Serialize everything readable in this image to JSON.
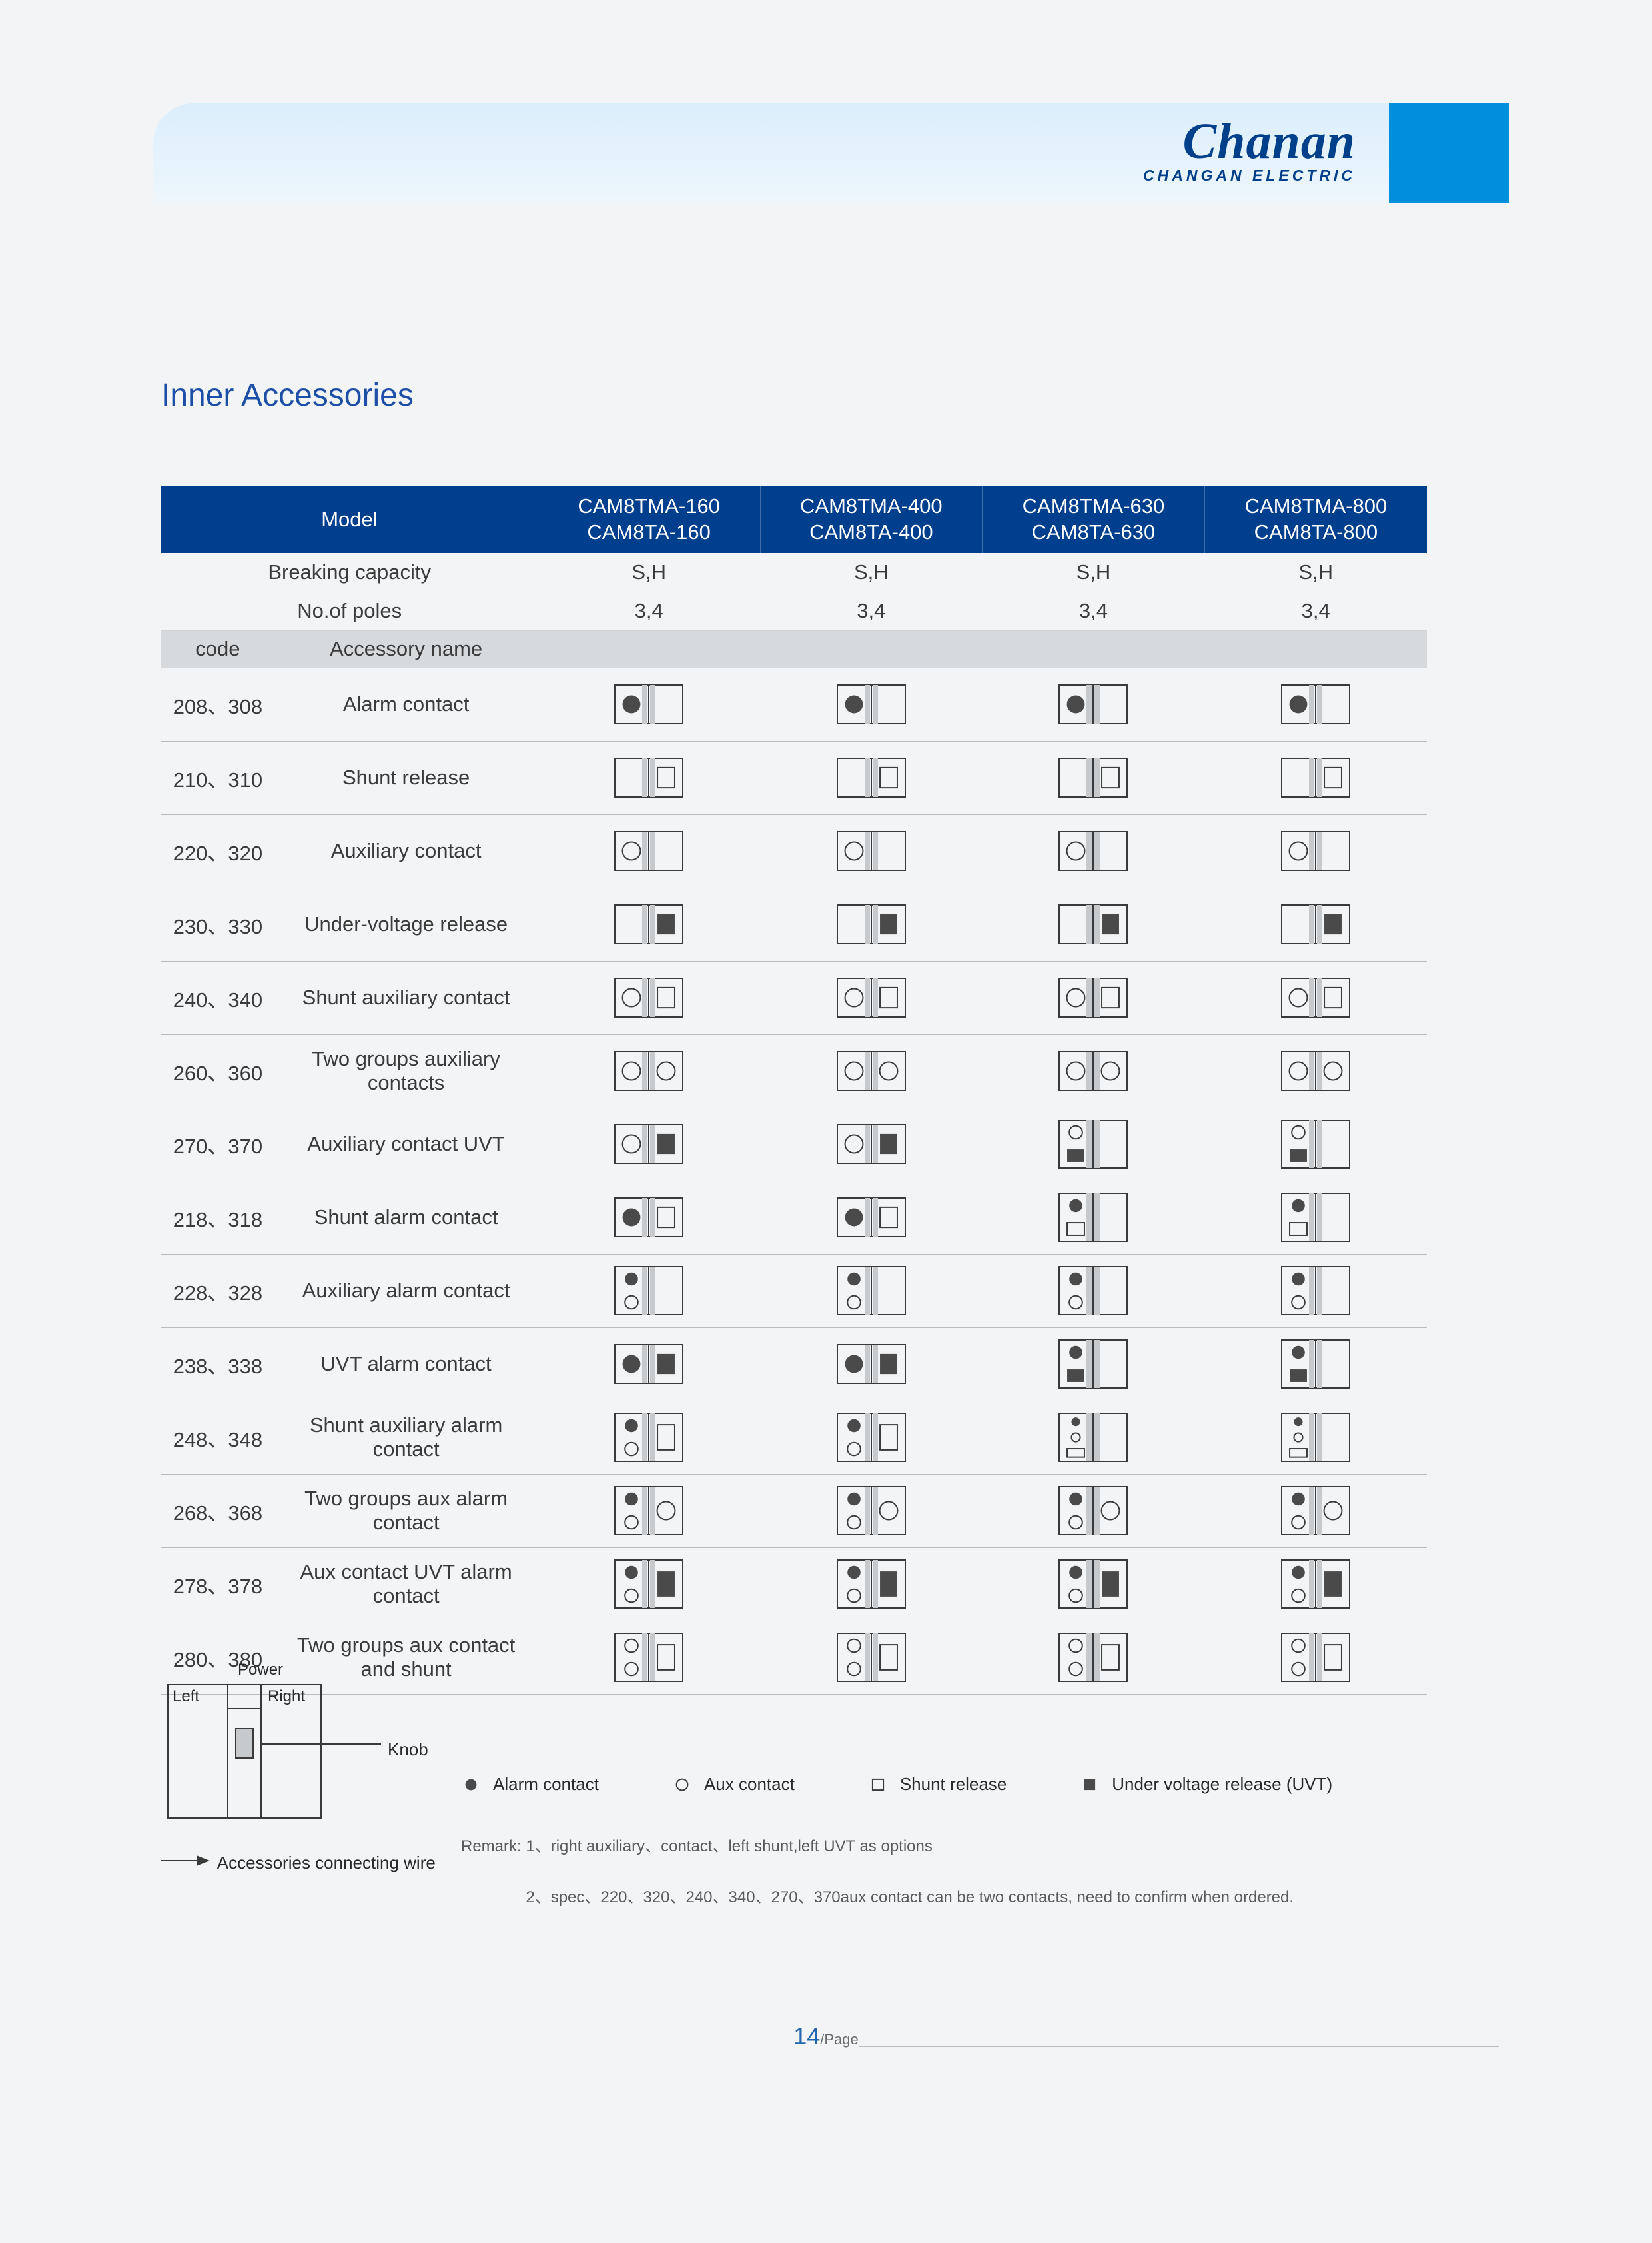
{
  "brand": {
    "main": "Chanan",
    "sub": "CHANGAN ELECTRIC"
  },
  "section_title": "Inner Accessories",
  "colors": {
    "page_bg": "#f2f4f6",
    "banner_top": "#dbeefc",
    "banner_bottom": "#eef6fc",
    "banner_accent": "#0090db",
    "brand": "#00408a",
    "title": "#1e4fa7",
    "table_header_bg": "#003f8e",
    "table_header_border": "rgba(255,255,255,0.25)",
    "grey_row_bg": "#d7dadd",
    "row_border": "#b8bcc2",
    "info_border": "#cfd3d8",
    "footer_num": "#2266b2",
    "diagram_stroke": "#3a3a3a",
    "diagram_fill_grey": "#c7cacd",
    "diagram_fill_dark": "#4a4a4a"
  },
  "header": {
    "model_label": "Model",
    "models": [
      {
        "a": "CAM8TMA-160",
        "b": "CAM8TA-160"
      },
      {
        "a": "CAM8TMA-400",
        "b": "CAM8TA-400"
      },
      {
        "a": "CAM8TMA-630",
        "b": "CAM8TA-630"
      },
      {
        "a": "CAM8TMA-800",
        "b": "CAM8TA-800"
      }
    ],
    "breaking_label": "Breaking capacity",
    "breaking_values": [
      "S,H",
      "S,H",
      "S,H",
      "S,H"
    ],
    "poles_label": "No.of poles",
    "poles_values": [
      "3,4",
      "3,4",
      "3,4",
      "3,4"
    ],
    "code_label": "code",
    "acc_name_label": "Accessory name"
  },
  "accessories": [
    {
      "code": "208、308",
      "name": "Alarm contact",
      "icons": [
        "alarm-single",
        "alarm-single",
        "alarm-single",
        "alarm-single"
      ]
    },
    {
      "code": "210、310",
      "name": "Shunt release",
      "icons": [
        "shunt-single",
        "shunt-single",
        "shunt-single",
        "shunt-single"
      ]
    },
    {
      "code": "220、320",
      "name": "Auxiliary contact",
      "icons": [
        "aux-single",
        "aux-single",
        "aux-single",
        "aux-single"
      ]
    },
    {
      "code": "230、330",
      "name": "Under-voltage release",
      "icons": [
        "uvt-single",
        "uvt-single",
        "uvt-single",
        "uvt-single"
      ]
    },
    {
      "code": "240、340",
      "name": "Shunt auxiliary contact",
      "icons": [
        "aux-shunt",
        "aux-shunt",
        "aux-shunt",
        "aux-shunt"
      ]
    },
    {
      "code": "260、360",
      "name": "Two groups auxiliary contacts",
      "icons": [
        "aux-aux",
        "aux-aux",
        "aux-aux",
        "aux-aux"
      ]
    },
    {
      "code": "270、370",
      "name": "Auxiliary contact UVT",
      "icons": [
        "aux-uvt",
        "aux-uvt",
        "aux-uvt-stack",
        "aux-uvt-stack"
      ]
    },
    {
      "code": "218、318",
      "name": "Shunt alarm contact",
      "icons": [
        "alarm-shunt",
        "alarm-shunt",
        "alarm-shunt-stack",
        "alarm-shunt-stack"
      ]
    },
    {
      "code": "228、328",
      "name": "Auxiliary alarm contact",
      "icons": [
        "alarm-aux-stack",
        "alarm-aux-stack",
        "alarm-aux-stack",
        "alarm-aux-stack"
      ]
    },
    {
      "code": "238、338",
      "name": "UVT alarm contact",
      "icons": [
        "alarm-uvt",
        "alarm-uvt",
        "alarm-uvt-stack",
        "alarm-uvt-stack"
      ]
    },
    {
      "code": "248、348",
      "name": "Shunt auxiliary alarm contact",
      "icons": [
        "alarm-aux-shunt",
        "alarm-aux-shunt",
        "alarm-aux-shunt-stack",
        "alarm-aux-shunt-stack"
      ]
    },
    {
      "code": "268、368",
      "name": "Two groups aux alarm contact",
      "icons": [
        "alarm-aux-aux",
        "alarm-aux-aux",
        "alarm-aux-aux-stack",
        "alarm-aux-aux-stack"
      ]
    },
    {
      "code": "278、378",
      "name": "Aux contact UVT alarm contact",
      "icons": [
        "alarm-aux-uvt",
        "alarm-aux-uvt",
        "alarm-aux-uvt-stack",
        "alarm-aux-uvt-stack"
      ]
    },
    {
      "code": "280、380",
      "name": "Two groups aux contact and shunt",
      "icons": [
        "aux-aux-shunt",
        "aux-aux-shunt",
        "aux-aux-shunt-stack",
        "aux-aux-shunt-stack"
      ]
    }
  ],
  "icon_defs": {
    "alarm-single": {
      "layout": "wide",
      "slots": [
        [
          "alarm"
        ],
        []
      ]
    },
    "shunt-single": {
      "layout": "wide",
      "slots": [
        [],
        [
          "shunt"
        ]
      ]
    },
    "aux-single": {
      "layout": "wide",
      "slots": [
        [
          "aux"
        ],
        []
      ]
    },
    "uvt-single": {
      "layout": "wide",
      "slots": [
        [],
        [
          "uvt"
        ]
      ]
    },
    "aux-shunt": {
      "layout": "wide",
      "slots": [
        [
          "aux"
        ],
        [
          "shunt"
        ]
      ]
    },
    "aux-aux": {
      "layout": "wide",
      "slots": [
        [
          "aux"
        ],
        [
          "aux"
        ]
      ]
    },
    "aux-uvt": {
      "layout": "wide",
      "slots": [
        [
          "aux"
        ],
        [
          "uvt"
        ]
      ]
    },
    "aux-uvt-stack": {
      "layout": "narrow",
      "slots": [
        [
          "aux",
          "uvt"
        ],
        []
      ]
    },
    "alarm-shunt": {
      "layout": "wide",
      "slots": [
        [
          "alarm"
        ],
        [
          "shunt"
        ]
      ]
    },
    "alarm-shunt-stack": {
      "layout": "narrow",
      "slots": [
        [
          "alarm",
          "shunt"
        ],
        []
      ]
    },
    "alarm-aux-stack": {
      "layout": "narrow",
      "slots": [
        [
          "alarm",
          "aux"
        ],
        []
      ]
    },
    "alarm-uvt": {
      "layout": "wide",
      "slots": [
        [
          "alarm"
        ],
        [
          "uvt"
        ]
      ]
    },
    "alarm-uvt-stack": {
      "layout": "narrow",
      "slots": [
        [
          "alarm",
          "uvt"
        ],
        []
      ]
    },
    "alarm-aux-shunt": {
      "layout": "wide-stack",
      "slots": [
        [
          "alarm",
          "aux"
        ],
        [
          "shunt"
        ]
      ]
    },
    "alarm-aux-shunt-stack": {
      "layout": "narrow-stack",
      "slots": [
        [
          "alarm",
          "aux",
          "shunt"
        ],
        []
      ]
    },
    "alarm-aux-aux": {
      "layout": "wide-stack",
      "slots": [
        [
          "alarm",
          "aux"
        ],
        [
          "aux"
        ]
      ]
    },
    "alarm-aux-aux-stack": {
      "layout": "narrow-stack",
      "slots": [
        [
          "alarm",
          "aux"
        ],
        [
          "aux"
        ]
      ]
    },
    "alarm-aux-uvt": {
      "layout": "wide-stack",
      "slots": [
        [
          "alarm",
          "aux"
        ],
        [
          "uvt"
        ]
      ]
    },
    "alarm-aux-uvt-stack": {
      "layout": "narrow-stack",
      "slots": [
        [
          "alarm",
          "aux"
        ],
        [
          "uvt"
        ]
      ]
    },
    "aux-aux-shunt": {
      "layout": "wide-stack",
      "slots": [
        [
          "aux",
          "aux"
        ],
        [
          "shunt"
        ]
      ]
    },
    "aux-aux-shunt-stack": {
      "layout": "narrow-stack",
      "slots": [
        [
          "aux",
          "aux"
        ],
        [
          "shunt"
        ]
      ]
    }
  },
  "legend": {
    "power": "Power",
    "left": "Left",
    "right": "Right",
    "knob": "Knob",
    "acc_wire_arrow_label": "Accessories connecting wire",
    "items": [
      {
        "sym": "alarm",
        "label": "Alarm contact"
      },
      {
        "sym": "aux",
        "label": "Aux contact"
      },
      {
        "sym": "shunt",
        "label": "Shunt release"
      },
      {
        "sym": "uvt",
        "label": "Under voltage release (UVT)"
      }
    ],
    "remark_prefix": "Remark:",
    "remark1": "1、right auxiliary、contact、left shunt,left UVT as options",
    "remark2": "2、spec、220、320、240、340、270、370aux contact can be two contacts, need to confirm when ordered."
  },
  "footer": {
    "page_num": "14",
    "page_label": "/Page"
  }
}
